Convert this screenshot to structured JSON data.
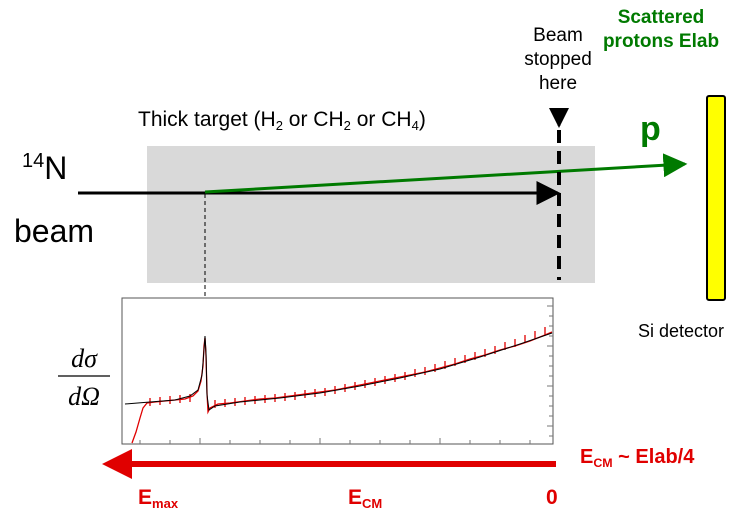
{
  "target": {
    "label_prefix": "Thick target (H",
    "sub1": "2",
    "mid1": " or CH",
    "sub2": "2",
    "mid2": " or CH",
    "sub3": "4",
    "suffix": ")"
  },
  "beam": {
    "isotope_mass": "14",
    "isotope_symbol": "N",
    "word": "beam"
  },
  "stop_label": "Beam stopped here",
  "scattered_label": "Scattered protons Elab",
  "proton_label": "p",
  "detector_label": "Si detector",
  "plot": {
    "ylabel_num": "dσ",
    "ylabel_den": "dΩ"
  },
  "energy": {
    "relation_prefix": "E",
    "relation_sub": "CM",
    "relation_suffix": " ~ Elab/4",
    "axis_start_prefix": "E",
    "axis_start_sub": "max",
    "axis_mid_prefix": "E",
    "axis_mid_sub": "CM",
    "axis_end": "0"
  },
  "colors": {
    "proton_green": "#007a00",
    "energy_red": "#e00000",
    "target_gray": "#d9d9d9",
    "detector_yellow": "#ffff00"
  }
}
